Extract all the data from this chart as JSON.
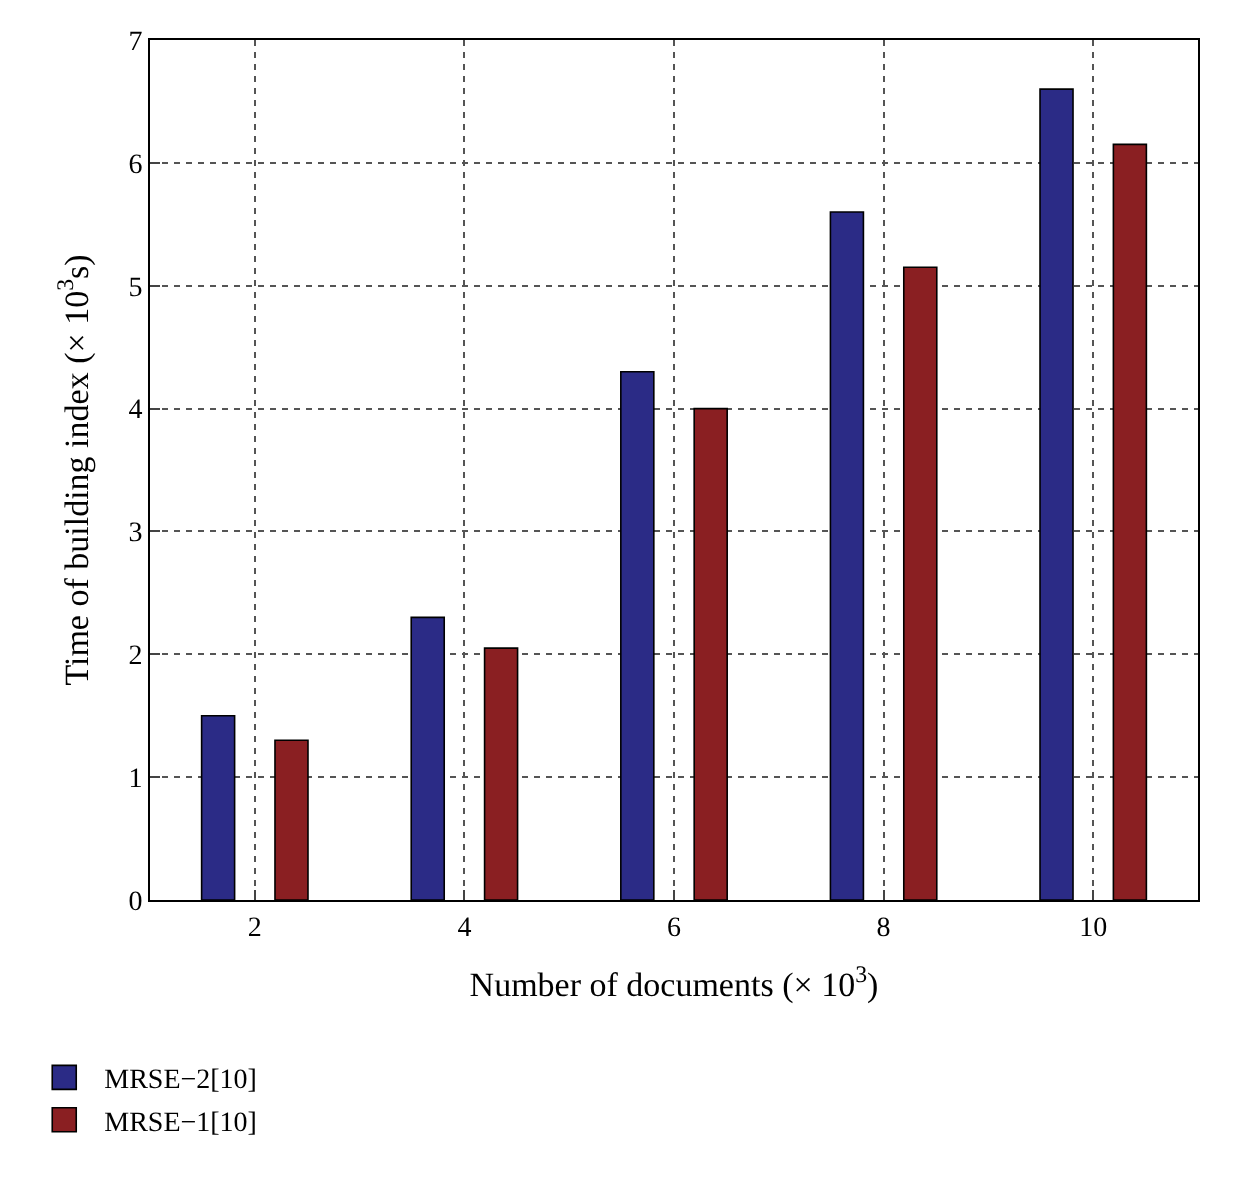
{
  "chart_data": {
    "type": "bar",
    "xlabel": "Number of documents (× 10$^{3}$)",
    "ylabel": "Time of building index (× 10$^{3}$s)",
    "categories": [
      "2",
      "4",
      "6",
      "8",
      "10"
    ],
    "series": [
      {
        "name": "MRSE−2[10]",
        "color": "#2b2b86",
        "values": [
          1.5,
          2.3,
          4.3,
          5.6,
          6.6
        ]
      },
      {
        "name": "MRSE−1[10]",
        "color": "#8a1f22",
        "values": [
          1.3,
          2.05,
          4.0,
          5.15,
          6.15
        ]
      }
    ],
    "ylim": [
      0,
      7
    ],
    "yticks": [
      0,
      1,
      2,
      3,
      4,
      5,
      6,
      7
    ],
    "grid": true,
    "legend": "bottom left"
  }
}
